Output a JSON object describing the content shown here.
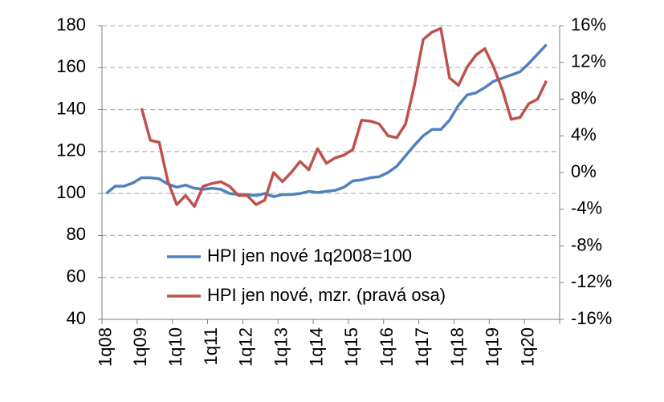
{
  "chart_data": {
    "type": "line",
    "categories": [
      "1q08",
      null,
      null,
      null,
      "1q09",
      null,
      null,
      null,
      "1q10",
      null,
      null,
      null,
      "1q11",
      null,
      null,
      null,
      "1q12",
      null,
      null,
      null,
      "1q13",
      null,
      null,
      null,
      "1q14",
      null,
      null,
      null,
      "1q15",
      null,
      null,
      null,
      "1q16",
      null,
      null,
      null,
      "1q17",
      null,
      null,
      null,
      "1q18",
      null,
      null,
      null,
      "1q19",
      null,
      null,
      null,
      "1q20",
      null,
      null,
      null
    ],
    "series": [
      {
        "name": "HPI jen nové 1q2008=100",
        "color": "#4f81bd",
        "values": [
          100,
          103.5,
          103.5,
          105,
          107.5,
          107.5,
          107,
          104.5,
          103,
          104,
          102.5,
          102,
          102.5,
          102,
          100,
          99.5,
          99.5,
          99,
          100,
          98.5,
          99.5,
          99.5,
          100,
          101,
          100.5,
          101,
          101.5,
          103,
          106,
          106.5,
          107.5,
          108,
          110,
          113,
          118,
          123,
          127.5,
          130.5,
          130.5,
          135,
          142,
          147,
          148,
          150.5,
          153.5,
          155,
          156.5,
          158,
          162,
          166.5,
          171,
          null
        ]
      },
      {
        "name": "HPI jen nové, mzr. (pravá osa)",
        "color": "#c0504d",
        "axis": "y2",
        "values": [
          null,
          null,
          null,
          null,
          7,
          3.5,
          3.3,
          -1,
          -3.5,
          -2.5,
          -3.7,
          -1.5,
          -1.2,
          -1,
          -1.5,
          -2.5,
          -2.5,
          -3.5,
          -3,
          0,
          -1,
          0,
          1.2,
          0.3,
          2.6,
          1,
          1.6,
          1.9,
          2.5,
          5.7,
          5.6,
          5.3,
          4,
          3.8,
          5.3,
          9.5,
          14.5,
          15.3,
          15.7,
          10.3,
          9.5,
          11.5,
          12.8,
          13.5,
          11.5,
          9,
          5.8,
          6,
          7.5,
          8,
          10,
          null
        ]
      }
    ],
    "ylim": [
      40,
      180
    ],
    "yticks": [
      40,
      60,
      80,
      100,
      120,
      140,
      160,
      180
    ],
    "y2lim": [
      -16,
      16
    ],
    "y2ticks": [
      {
        "value": -16,
        "label": "-16%"
      },
      {
        "value": -12,
        "label": "-12%"
      },
      {
        "value": -8,
        "label": "-8%"
      },
      {
        "value": -4,
        "label": "-4%"
      },
      {
        "value": 0,
        "label": "0%"
      },
      {
        "value": 4,
        "label": "4%"
      },
      {
        "value": 8,
        "label": "8%"
      },
      {
        "value": 12,
        "label": "12%"
      },
      {
        "value": 16,
        "label": "16%"
      }
    ],
    "grid": true
  }
}
